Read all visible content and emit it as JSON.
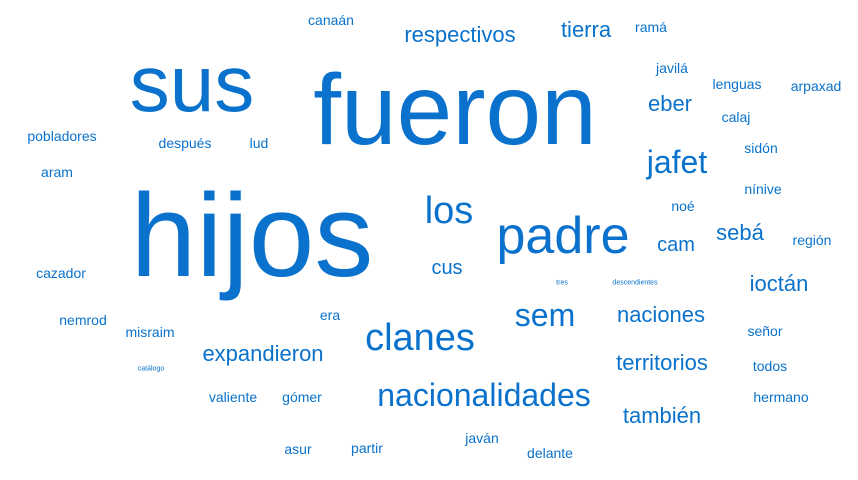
{
  "palette": {
    "word_color": "#0a72cc",
    "background": "#ffffff"
  },
  "words": [
    {
      "text": "hijos",
      "weight": 10
    },
    {
      "text": "fueron",
      "weight": 8
    },
    {
      "text": "sus",
      "weight": 7
    },
    {
      "text": "padre",
      "weight": 5
    },
    {
      "text": "los",
      "weight": 4
    },
    {
      "text": "clanes",
      "weight": 4
    },
    {
      "text": "nacionalidades",
      "weight": 3
    },
    {
      "text": "jafet",
      "weight": 3
    },
    {
      "text": "sem",
      "weight": 3
    },
    {
      "text": "respectivos",
      "weight": 2
    },
    {
      "text": "tierra",
      "weight": 2
    },
    {
      "text": "eber",
      "weight": 2
    },
    {
      "text": "cam",
      "weight": 2
    },
    {
      "text": "sebá",
      "weight": 2
    },
    {
      "text": "ioctán",
      "weight": 2
    },
    {
      "text": "cus",
      "weight": 2
    },
    {
      "text": "naciones",
      "weight": 2
    },
    {
      "text": "expandieron",
      "weight": 2
    },
    {
      "text": "territorios",
      "weight": 2
    },
    {
      "text": "también",
      "weight": 2
    },
    {
      "text": "canaán",
      "weight": 1
    },
    {
      "text": "ramá",
      "weight": 1
    },
    {
      "text": "javilá",
      "weight": 1
    },
    {
      "text": "lenguas",
      "weight": 1
    },
    {
      "text": "arpaxad",
      "weight": 1
    },
    {
      "text": "calaj",
      "weight": 1
    },
    {
      "text": "pobladores",
      "weight": 1
    },
    {
      "text": "después",
      "weight": 1
    },
    {
      "text": "lud",
      "weight": 1
    },
    {
      "text": "sidón",
      "weight": 1
    },
    {
      "text": "aram",
      "weight": 1
    },
    {
      "text": "nínive",
      "weight": 1
    },
    {
      "text": "noé",
      "weight": 1
    },
    {
      "text": "región",
      "weight": 1
    },
    {
      "text": "cazador",
      "weight": 1
    },
    {
      "text": "tres",
      "weight": 0
    },
    {
      "text": "descendientes",
      "weight": 0
    },
    {
      "text": "nemrod",
      "weight": 1
    },
    {
      "text": "era",
      "weight": 1
    },
    {
      "text": "misraim",
      "weight": 1
    },
    {
      "text": "señor",
      "weight": 1
    },
    {
      "text": "catálogo",
      "weight": 0
    },
    {
      "text": "todos",
      "weight": 1
    },
    {
      "text": "valiente",
      "weight": 1
    },
    {
      "text": "gómer",
      "weight": 1
    },
    {
      "text": "hermano",
      "weight": 1
    },
    {
      "text": "asur",
      "weight": 1
    },
    {
      "text": "partir",
      "weight": 1
    },
    {
      "text": "javán",
      "weight": 1
    },
    {
      "text": "delante",
      "weight": 1
    }
  ]
}
